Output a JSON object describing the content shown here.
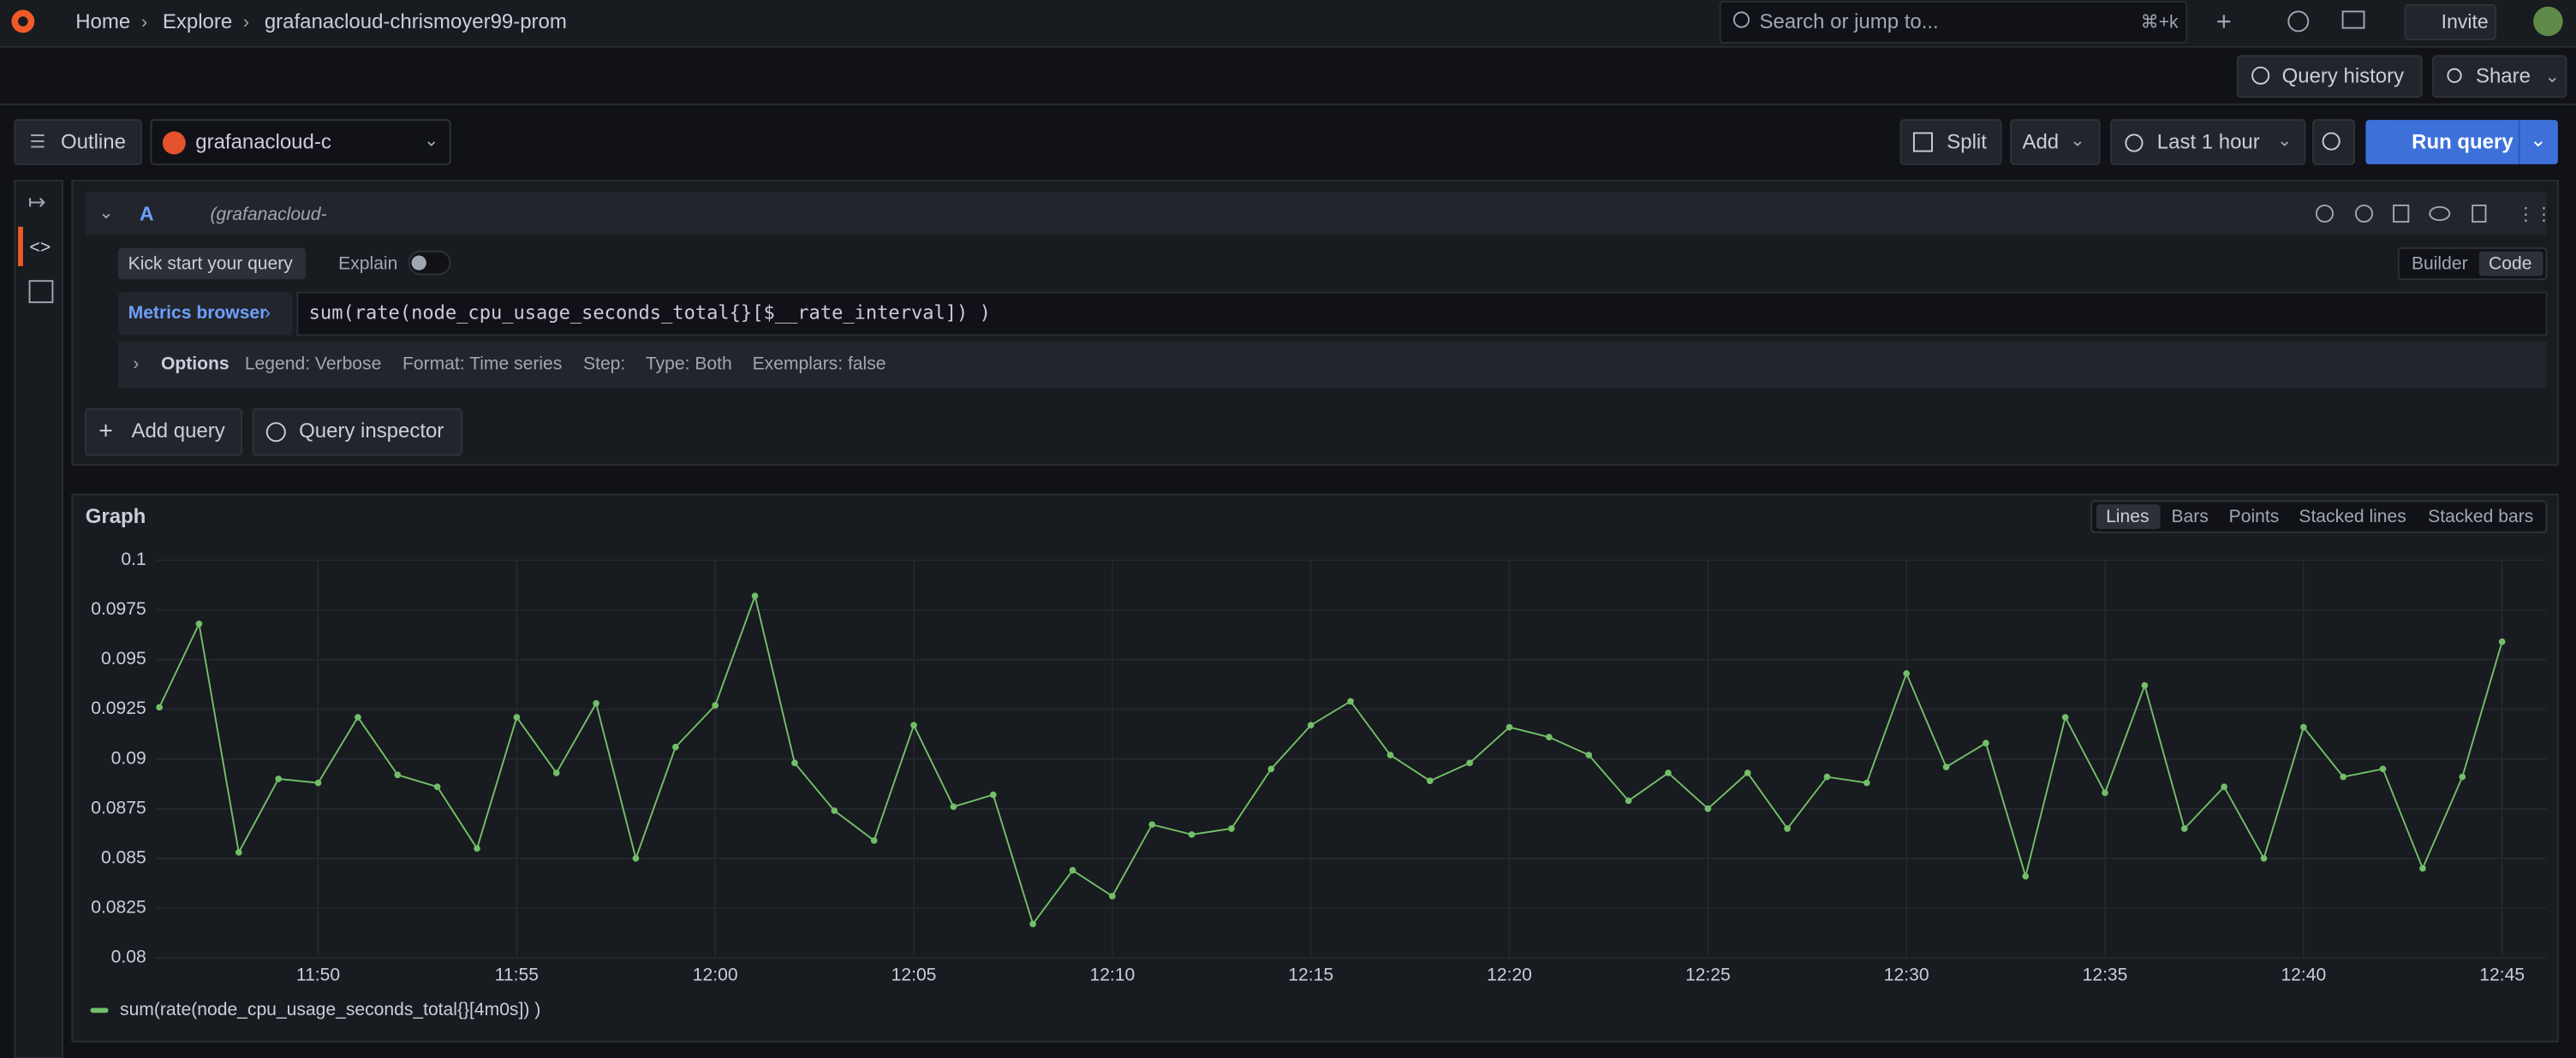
{
  "topbar": {
    "breadcrumbs": [
      "Home",
      "Explore",
      "grafanacloud-chrismoyer99-prom"
    ],
    "search": "Search or jump to...",
    "shortcut": "⌘+k",
    "invite": "Invite"
  },
  "explore_bar": {
    "query_history": "Query history",
    "share": "Share"
  },
  "toolbar": {
    "outline": "Outline",
    "datasource": "grafanacloud-c",
    "split": "Split",
    "add": "Add",
    "time_range": "Last 1 hour",
    "run_query": "Run query"
  },
  "query": {
    "ref_id": "A",
    "datasource": "(grafanacloud-",
    "kick_start": "Kick start your query",
    "explain": "Explain",
    "modes": [
      "Builder",
      "Code"
    ],
    "metrics_browser": "Metrics browser",
    "expr": "sum(rate(node_cpu_usage_seconds_total{}[$__rate_interval]) )",
    "options_label": "Options",
    "options": [
      "Legend: Verbose",
      "Format: Time series",
      "Step:",
      "Type: Both",
      "Exemplars: false"
    ]
  },
  "actions": {
    "add_query": "Add query",
    "query_inspector": "Query inspector"
  },
  "panel": {
    "view_options": [
      "Lines",
      "Bars",
      "Points",
      "Stacked lines",
      "Stacked bars"
    ]
  },
  "chart_data": {
    "type": "line",
    "title": "Graph",
    "x": [
      "11:46",
      "11:47",
      "11:48",
      "11:49",
      "11:50",
      "11:51",
      "11:52",
      "11:53",
      "11:54",
      "11:55",
      "11:56",
      "11:57",
      "11:58",
      "11:59",
      "12:00",
      "12:01",
      "12:02",
      "12:03",
      "12:04",
      "12:05",
      "12:06",
      "12:07",
      "12:08",
      "12:09",
      "12:10",
      "12:11",
      "12:12",
      "12:13",
      "12:14",
      "12:15",
      "12:16",
      "12:17",
      "12:18",
      "12:19",
      "12:20",
      "12:21",
      "12:22",
      "12:23",
      "12:24",
      "12:25",
      "12:26",
      "12:27",
      "12:28",
      "12:29",
      "12:30",
      "12:31",
      "12:32",
      "12:33",
      "12:34",
      "12:35",
      "12:36",
      "12:37",
      "12:38",
      "12:39",
      "12:40",
      "12:41",
      "12:42",
      "12:43",
      "12:44",
      "12:45"
    ],
    "series": [
      {
        "name": "sum(rate(node_cpu_usage_seconds_total{}[4m0s]) )",
        "color": "#73bf69",
        "values": [
          0.0926,
          0.0968,
          0.0853,
          0.089,
          0.0888,
          0.0921,
          0.0892,
          0.0886,
          0.0855,
          0.0921,
          0.0893,
          0.0928,
          0.085,
          0.0906,
          0.0927,
          0.0982,
          0.0898,
          0.0874,
          0.0859,
          0.0917,
          0.0876,
          0.0882,
          0.0817,
          0.0844,
          0.0831,
          0.0867,
          0.0862,
          0.0865,
          0.0895,
          0.0917,
          0.0929,
          0.0902,
          0.0889,
          0.0898,
          0.0916,
          0.0911,
          0.0902,
          0.0879,
          0.0893,
          0.0875,
          0.0893,
          0.0865,
          0.0891,
          0.0888,
          0.0943,
          0.0896,
          0.0908,
          0.0841,
          0.0921,
          0.0883,
          0.0937,
          0.0865,
          0.0886,
          0.085,
          0.0916,
          0.0891,
          0.0895,
          0.0845,
          0.0891,
          0.0959
        ]
      }
    ],
    "xticks": [
      "11:50",
      "11:55",
      "12:00",
      "12:05",
      "12:10",
      "12:15",
      "12:20",
      "12:25",
      "12:30",
      "12:35",
      "12:40",
      "12:45"
    ],
    "ylim": [
      0.08,
      0.1
    ],
    "yticks": [
      0.08,
      0.0825,
      0.085,
      0.0875,
      0.09,
      0.0925,
      0.095,
      0.0975,
      0.1
    ],
    "grid": true
  }
}
